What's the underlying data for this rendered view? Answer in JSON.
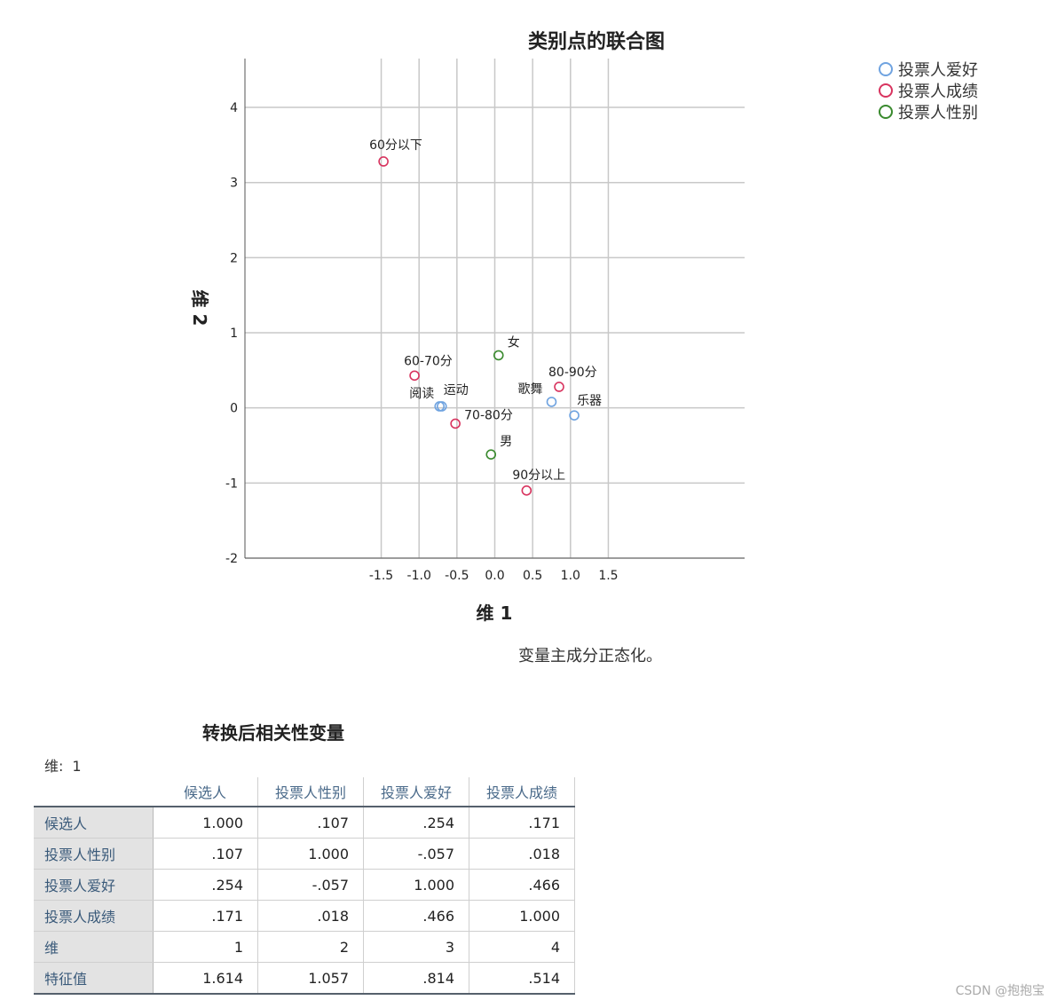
{
  "chart_data": {
    "type": "scatter",
    "title": "类别点的联合图",
    "xlabel": "维 1",
    "ylabel": "维 2",
    "xlim": [
      -3.3,
      3.3
    ],
    "ylim": [
      -2,
      4.65
    ],
    "xticks": [
      -1.5,
      -1.0,
      -0.5,
      0.0,
      0.5,
      1.0,
      1.5
    ],
    "xtick_labels": [
      "-1.5",
      "-1.0",
      "-0.5",
      "0.0",
      "0.5",
      "1.0",
      "1.5"
    ],
    "yticks": [
      -2,
      -1,
      0,
      1,
      2,
      3,
      4
    ],
    "ytick_labels": [
      "-2",
      "-1",
      "0",
      "1",
      "2",
      "3",
      "4"
    ],
    "grid": true,
    "legend_position": "top-right",
    "series": [
      {
        "name": "投票人爱好",
        "color": "#6fa3e0",
        "points": [
          {
            "label": "阅读",
            "x": -0.73,
            "y": 0.02
          },
          {
            "label": "运动",
            "x": -0.7,
            "y": 0.02
          },
          {
            "label": "歌舞",
            "x": 0.75,
            "y": 0.08
          },
          {
            "label": "乐器",
            "x": 1.05,
            "y": -0.1
          }
        ]
      },
      {
        "name": "投票人成绩",
        "color": "#d8345f",
        "points": [
          {
            "label": "60分以下",
            "x": -1.47,
            "y": 3.28
          },
          {
            "label": "60-70分",
            "x": -1.06,
            "y": 0.43
          },
          {
            "label": "70-80分",
            "x": -0.52,
            "y": -0.21
          },
          {
            "label": "80-90分",
            "x": 0.85,
            "y": 0.28
          },
          {
            "label": "90分以上",
            "x": 0.42,
            "y": -1.1
          }
        ]
      },
      {
        "name": "投票人性别",
        "color": "#3a8a2e",
        "points": [
          {
            "label": "女",
            "x": 0.05,
            "y": 0.7
          },
          {
            "label": "男",
            "x": -0.05,
            "y": -0.62
          }
        ]
      }
    ]
  },
  "note": "变量主成分正态化。",
  "table": {
    "title": "转换后相关性变量",
    "subtitle_label": "维:",
    "subtitle_value": "1",
    "headers": [
      "候选人",
      "投票人性别",
      "投票人爱好",
      "投票人成绩"
    ],
    "rows": [
      {
        "name": "候选人",
        "values": [
          "1.000",
          ".107",
          ".254",
          ".171"
        ]
      },
      {
        "name": "投票人性别",
        "values": [
          ".107",
          "1.000",
          "-.057",
          ".018"
        ]
      },
      {
        "name": "投票人爱好",
        "values": [
          ".254",
          "-.057",
          "1.000",
          ".466"
        ]
      },
      {
        "name": "投票人成绩",
        "values": [
          ".171",
          ".018",
          ".466",
          "1.000"
        ]
      },
      {
        "name": "维",
        "values": [
          "1",
          "2",
          "3",
          "4"
        ]
      },
      {
        "name": "特征值",
        "values": [
          "1.614",
          "1.057",
          ".814",
          ".514"
        ]
      }
    ]
  },
  "credit": "CSDN @抱抱宝"
}
